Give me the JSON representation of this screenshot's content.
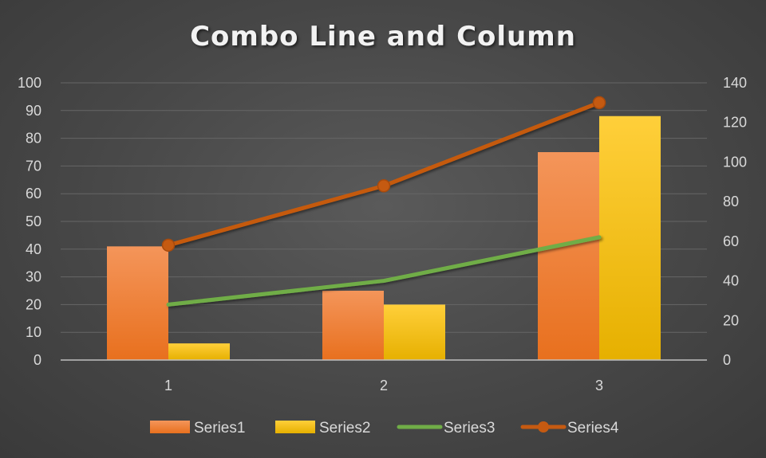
{
  "chart_data": {
    "type": "combo",
    "title": "Combo Line and Column",
    "categories": [
      "1",
      "2",
      "3"
    ],
    "series": [
      {
        "name": "Series1",
        "type": "bar",
        "axis": "left",
        "values": [
          41,
          25,
          75
        ],
        "color": "#ed7d31"
      },
      {
        "name": "Series2",
        "type": "bar",
        "axis": "left",
        "values": [
          6,
          20,
          88
        ],
        "color": "#ffc000"
      },
      {
        "name": "Series3",
        "type": "line",
        "axis": "right",
        "values": [
          28,
          40,
          62
        ],
        "color": "#70ad47"
      },
      {
        "name": "Series4",
        "type": "line",
        "axis": "right",
        "marker": "circle",
        "values": [
          58,
          88,
          130
        ],
        "color": "#c55a11"
      }
    ],
    "y_left": {
      "min": 0,
      "max": 100,
      "step": 10
    },
    "y_right": {
      "min": 0,
      "max": 140,
      "step": 20
    },
    "grid": true,
    "legend_position": "bottom"
  }
}
